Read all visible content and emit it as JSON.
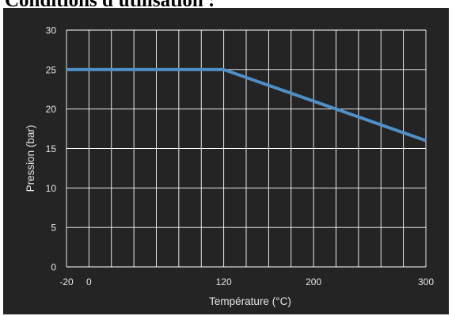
{
  "page": {
    "heading": "Conditions d'utilisation :"
  },
  "chart_data": {
    "type": "line",
    "xlabel": "Température (°C)",
    "ylabel": "Pression (bar)",
    "xlim": [
      -20,
      300
    ],
    "ylim": [
      0,
      30
    ],
    "x_tick_labels": [
      -20,
      0,
      120,
      200,
      300
    ],
    "y_tick_labels": [
      0,
      5,
      10,
      15,
      20,
      25,
      30
    ],
    "x_gridlines": [
      -20,
      0,
      20,
      40,
      60,
      80,
      100,
      120,
      140,
      160,
      180,
      200,
      220,
      240,
      260,
      280,
      300
    ],
    "y_gridlines": [
      0,
      5,
      10,
      15,
      20,
      25,
      30
    ],
    "grid": true,
    "series": [
      {
        "x": [
          -20,
          120,
          300
        ],
        "y": [
          25,
          25,
          16
        ],
        "color": "#4f8fc7"
      }
    ],
    "colors": {
      "background": "#242424",
      "grid": "#ffffff",
      "text": "#e6e6e6",
      "line": "#4f8fc7"
    }
  }
}
